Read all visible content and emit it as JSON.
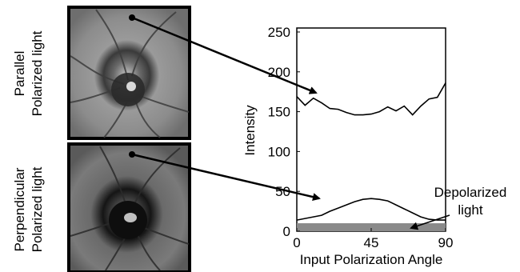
{
  "panels": [
    {
      "line1": "Parallel",
      "line2": "Polarized light"
    },
    {
      "line1": "Perpendicular",
      "line2": "Polarized light"
    }
  ],
  "chart_data": {
    "type": "line",
    "title": "",
    "xlabel": "Input Polarization Angle",
    "ylabel": "Intensity",
    "xlim": [
      0,
      90
    ],
    "ylim": [
      0,
      255
    ],
    "xticks": [
      0,
      45,
      90
    ],
    "yticks": [
      0,
      50,
      100,
      150,
      200,
      250
    ],
    "grid": false,
    "series": [
      {
        "id": "parallel",
        "color": "#000000",
        "x": [
          0,
          5,
          10,
          15,
          20,
          25,
          30,
          35,
          40,
          45,
          50,
          55,
          60,
          65,
          70,
          75,
          80,
          85,
          90
        ],
        "y": [
          169,
          158,
          167,
          161,
          154,
          153,
          149,
          146,
          146,
          147,
          150,
          156,
          151,
          157,
          146,
          157,
          166,
          168,
          186
        ]
      },
      {
        "id": "perpendicular",
        "color": "#000000",
        "x": [
          0,
          5,
          10,
          15,
          20,
          25,
          30,
          35,
          40,
          45,
          50,
          55,
          60,
          65,
          70,
          75,
          80,
          85,
          90
        ],
        "y": [
          14,
          16,
          18,
          20,
          25,
          29,
          33,
          37,
          40,
          41,
          40,
          38,
          33,
          28,
          23,
          18,
          15,
          14,
          14
        ]
      }
    ],
    "band": {
      "from": 0,
      "to": 10,
      "color": "#8a8a8a"
    },
    "annotations": [
      {
        "line1": "Depolarized",
        "line2": "light"
      }
    ]
  }
}
